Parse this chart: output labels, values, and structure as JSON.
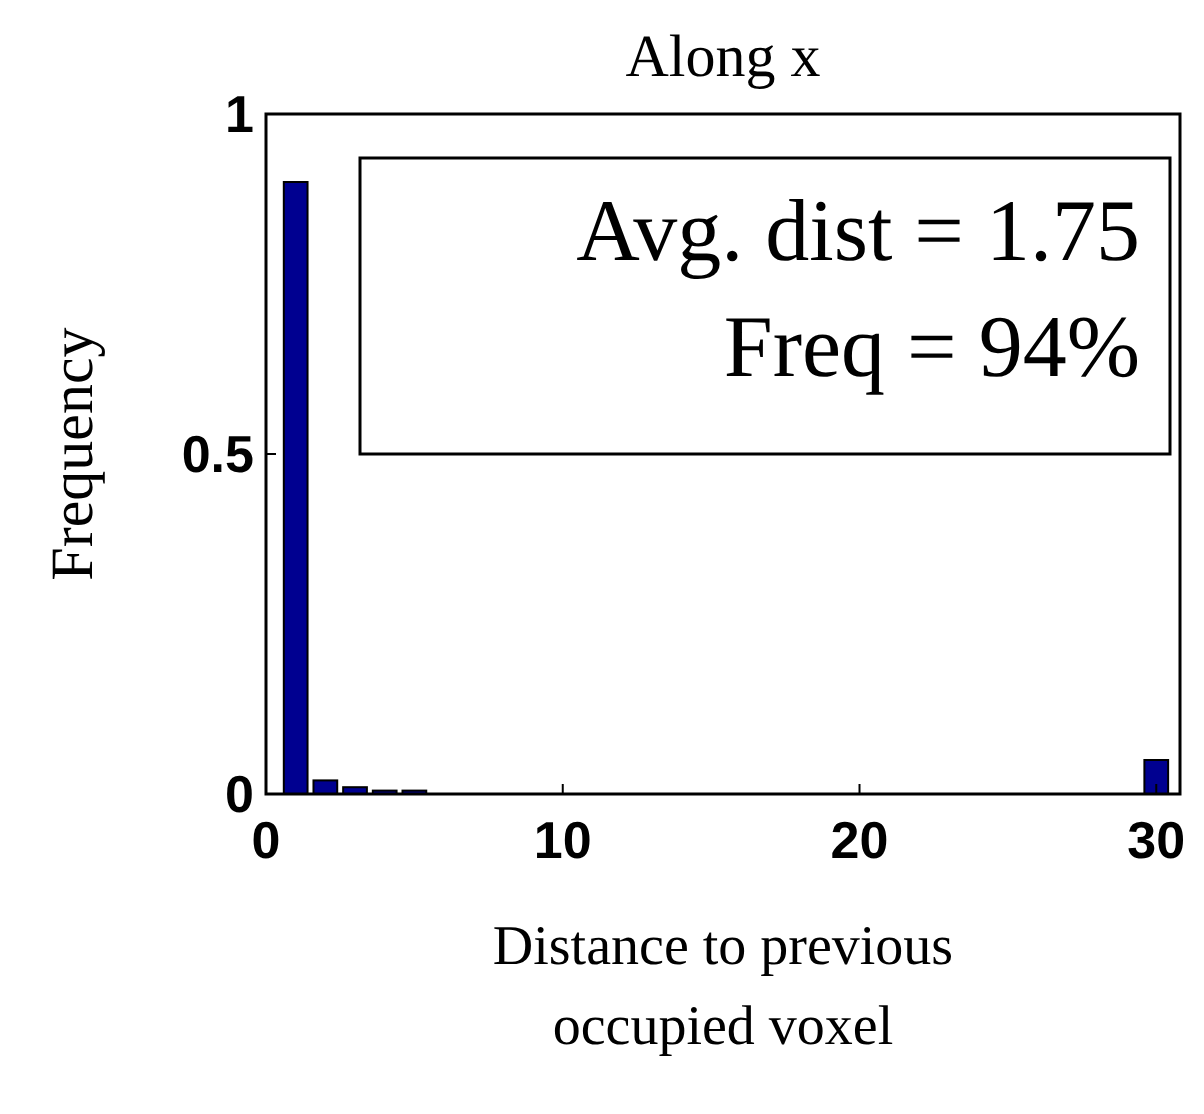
{
  "chart_data": {
    "type": "bar",
    "title": "Along x",
    "xlabel": "Distance to previous occupied voxel",
    "ylabel": "Frequency",
    "x": [
      1,
      2,
      3,
      4,
      5,
      6,
      7,
      8,
      9,
      10,
      11,
      12,
      13,
      14,
      15,
      16,
      17,
      18,
      19,
      20,
      21,
      22,
      23,
      24,
      25,
      26,
      27,
      28,
      29,
      30
    ],
    "values": [
      0.9,
      0.02,
      0.01,
      0.005,
      0.005,
      0,
      0,
      0,
      0,
      0,
      0,
      0,
      0,
      0,
      0,
      0,
      0,
      0,
      0,
      0,
      0,
      0,
      0,
      0,
      0,
      0,
      0,
      0,
      0,
      0.05
    ],
    "color": "#000090",
    "xlim": [
      0,
      30.8
    ],
    "ylim": [
      0,
      1
    ],
    "xticks": [
      0,
      10,
      20,
      30
    ],
    "yticks": [
      0,
      {
        "value": 0.5,
        "label": "0.5"
      },
      1
    ],
    "annotations": [
      "Avg. dist = 1.75",
      "Freq = 94%"
    ],
    "grid": false
  }
}
